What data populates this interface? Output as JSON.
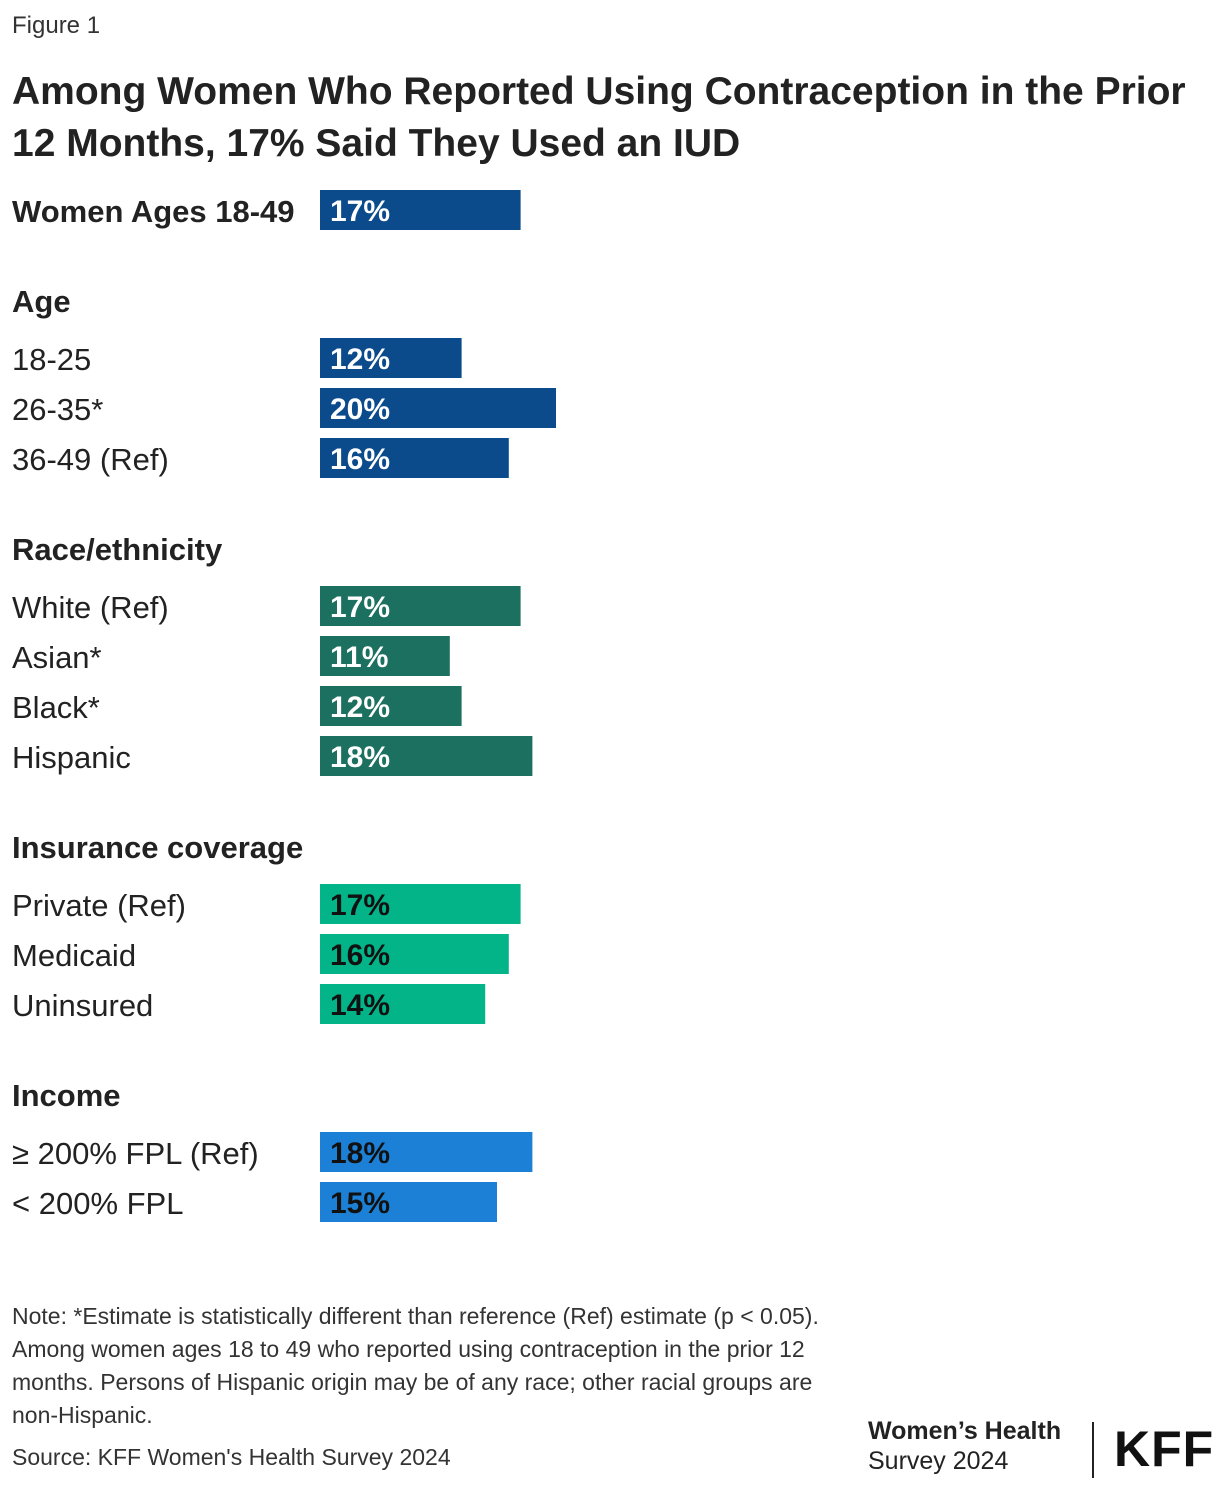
{
  "figure_label": "Figure 1",
  "title": "Among Women Who Reported Using Contraception in the Prior 12 Months, 17% Said They Used an IUD",
  "chart_data": {
    "type": "bar",
    "orientation": "horizontal",
    "xlim": [
      0,
      20
    ],
    "value_suffix": "%",
    "groups": [
      {
        "heading": "",
        "color": "#0b4a8b",
        "label_color": "#ffffff",
        "rows": [
          {
            "label": "Women Ages 18-49",
            "value": 17,
            "display": "17%"
          }
        ]
      },
      {
        "heading": "Age",
        "color": "#0b4a8b",
        "label_color": "#ffffff",
        "rows": [
          {
            "label": "18-25",
            "value": 12,
            "display": "12%"
          },
          {
            "label": "26-35*",
            "value": 20,
            "display": "20%"
          },
          {
            "label": "36-49 (Ref)",
            "value": 16,
            "display": "16%"
          }
        ]
      },
      {
        "heading": "Race/ethnicity",
        "color": "#1c7060",
        "label_color": "#ffffff",
        "rows": [
          {
            "label": "White (Ref)",
            "value": 17,
            "display": "17%"
          },
          {
            "label": "Asian*",
            "value": 11,
            "display": "11%"
          },
          {
            "label": "Black*",
            "value": 12,
            "display": "12%"
          },
          {
            "label": "Hispanic",
            "value": 18,
            "display": "18%"
          }
        ]
      },
      {
        "heading": "Insurance coverage",
        "color": "#02b488",
        "label_color": "#111111",
        "rows": [
          {
            "label": "Private (Ref)",
            "value": 17,
            "display": "17%"
          },
          {
            "label": "Medicaid",
            "value": 16,
            "display": "16%"
          },
          {
            "label": "Uninsured",
            "value": 14,
            "display": "14%"
          }
        ]
      },
      {
        "heading": "Income",
        "color": "#1c81d6",
        "label_color": "#111111",
        "rows": [
          {
            "label": "≥ 200% FPL (Ref)",
            "value": 18,
            "display": "18%"
          },
          {
            "label": "< 200% FPL",
            "value": 15,
            "display": "15%"
          }
        ]
      }
    ]
  },
  "note": "Note: *Estimate is statistically different than reference (Ref) estimate (p < 0.05). Among women ages 18 to 49 who reported using contraception in the prior 12 months. Persons of Hispanic origin may be of any race; other racial groups are non-Hispanic.",
  "source": "Source: KFF Women's Health Survey 2024",
  "brand": {
    "line1": "Women’s Health",
    "line2": "Survey 2024",
    "logo": "KFF"
  }
}
